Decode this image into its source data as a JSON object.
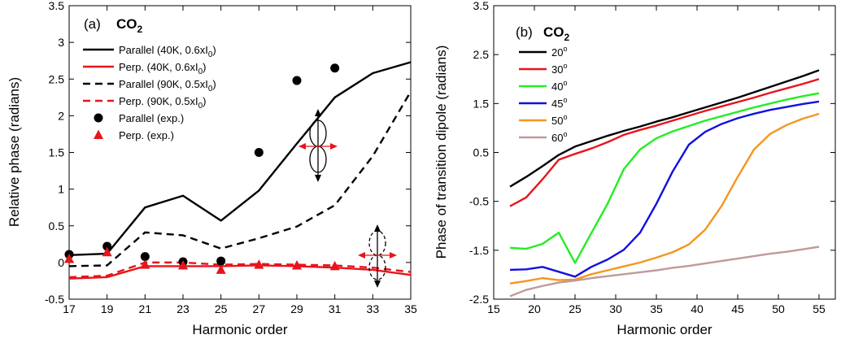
{
  "chart_data": [
    {
      "type": "line",
      "panel_label": "(a)",
      "molecule": "CO",
      "molecule_subscript": "2",
      "xlabel": "Harmonic order",
      "ylabel": "Relative phase (radians)",
      "xlim": [
        17,
        35
      ],
      "ylim": [
        -0.5,
        3.5
      ],
      "xticks": [
        17,
        19,
        21,
        23,
        25,
        27,
        29,
        31,
        33,
        35
      ],
      "xtick_labels": [
        "17",
        "19",
        "21",
        "23",
        "25",
        "27",
        "29",
        "31",
        "33",
        "35"
      ],
      "yticks": [
        -0.5,
        0,
        0.5,
        1,
        1.5,
        2,
        2.5,
        3,
        3.5
      ],
      "ytick_labels": [
        "-0.5",
        "0",
        "0.5",
        "1",
        "1.5",
        "2",
        "2.5",
        "3",
        "3.5"
      ],
      "legend_position": "top-left",
      "series": [
        {
          "name": "Parallel (40K, 0.6xI",
          "name_sub": "0",
          "name_end": ")",
          "style": "solid",
          "color": "#000000",
          "x": [
            17,
            19,
            21,
            23,
            25,
            27,
            29,
            31,
            33,
            35
          ],
          "y": [
            0.1,
            0.12,
            0.75,
            0.91,
            0.57,
            0.98,
            1.62,
            2.25,
            2.58,
            2.73
          ]
        },
        {
          "name": "Perp. (40K, 0.6xI",
          "name_sub": "0",
          "name_end": ")",
          "style": "solid",
          "color": "#e8141c",
          "x": [
            17,
            19,
            21,
            23,
            25,
            27,
            29,
            31,
            33,
            35
          ],
          "y": [
            -0.22,
            -0.2,
            -0.05,
            -0.05,
            -0.05,
            -0.04,
            -0.05,
            -0.07,
            -0.1,
            -0.17
          ]
        },
        {
          "name": "Parallel (90K, 0.5xI",
          "name_sub": "0",
          "name_end": ")",
          "style": "dashed",
          "color": "#000000",
          "x": [
            17,
            19,
            21,
            23,
            25,
            27,
            29,
            31,
            33,
            35
          ],
          "y": [
            -0.05,
            -0.04,
            0.41,
            0.37,
            0.19,
            0.33,
            0.49,
            0.78,
            1.45,
            2.33
          ]
        },
        {
          "name": "Perp. (90K, 0.5xI",
          "name_sub": "0",
          "name_end": ")",
          "style": "dashed",
          "color": "#e8141c",
          "x": [
            17,
            19,
            21,
            23,
            25,
            27,
            29,
            31,
            33,
            35
          ],
          "y": [
            -0.2,
            -0.18,
            0.0,
            0.0,
            -0.03,
            -0.02,
            -0.03,
            -0.04,
            -0.07,
            -0.13
          ]
        },
        {
          "name": "Parallel (exp.)",
          "style": "marker-circle",
          "color": "#000000",
          "x": [
            17,
            19,
            21,
            23,
            25,
            27,
            29,
            31
          ],
          "y": [
            0.11,
            0.22,
            0.08,
            0.01,
            0.02,
            1.5,
            2.48,
            2.65
          ]
        },
        {
          "name": "Perp. (exp.)",
          "style": "marker-triangle",
          "color": "#e8141c",
          "x": [
            17,
            19,
            21,
            23,
            25,
            27,
            29,
            31
          ],
          "y": [
            0.05,
            0.14,
            -0.03,
            -0.04,
            -0.1,
            -0.03,
            -0.04,
            -0.05
          ]
        }
      ]
    },
    {
      "type": "line",
      "panel_label": "(b)",
      "molecule": "CO",
      "molecule_subscript": "2",
      "xlabel": "Harmonic order",
      "ylabel": "Phase of transition dipole (radians)",
      "xlim": [
        15,
        57
      ],
      "ylim": [
        -2.5,
        3.5
      ],
      "xticks": [
        15,
        20,
        25,
        30,
        35,
        40,
        45,
        50,
        55
      ],
      "xtick_labels": [
        "15",
        "20",
        "25",
        "30",
        "35",
        "40",
        "45",
        "50",
        "55"
      ],
      "yticks": [
        -2.5,
        -1.5,
        -0.5,
        0.5,
        1.5,
        2.5,
        3.5
      ],
      "ytick_labels": [
        "-2.5",
        "-1.5",
        "-0.5",
        "0.5",
        "1.5",
        "2.5",
        "3.5"
      ],
      "legend_position": "top-left",
      "series": [
        {
          "name": "20",
          "degree": "o",
          "color": "#000000",
          "x": [
            17,
            19,
            21,
            23,
            25,
            27,
            29,
            31,
            33,
            35,
            37,
            39,
            41,
            43,
            45,
            47,
            49,
            51,
            53,
            55
          ],
          "y": [
            -0.2,
            0.0,
            0.22,
            0.45,
            0.62,
            0.73,
            0.84,
            0.94,
            1.03,
            1.13,
            1.22,
            1.32,
            1.42,
            1.52,
            1.62,
            1.73,
            1.84,
            1.95,
            2.06,
            2.18
          ]
        },
        {
          "name": "30",
          "degree": "o",
          "color": "#e8141c",
          "x": [
            17,
            19,
            21,
            23,
            25,
            27,
            29,
            31,
            33,
            35,
            37,
            39,
            41,
            43,
            45,
            47,
            49,
            51,
            53,
            55
          ],
          "y": [
            -0.6,
            -0.42,
            -0.05,
            0.35,
            0.47,
            0.58,
            0.71,
            0.86,
            0.96,
            1.05,
            1.15,
            1.25,
            1.35,
            1.44,
            1.53,
            1.62,
            1.72,
            1.81,
            1.9,
            2.0
          ]
        },
        {
          "name": "40",
          "degree": "o",
          "color": "#22ee22",
          "x": [
            17,
            19,
            21,
            23,
            25,
            27,
            29,
            31,
            33,
            35,
            37,
            39,
            41,
            43,
            45,
            47,
            49,
            51,
            53,
            55
          ],
          "y": [
            -1.45,
            -1.47,
            -1.37,
            -1.14,
            -1.76,
            -1.15,
            -0.55,
            0.16,
            0.56,
            0.79,
            0.93,
            1.04,
            1.15,
            1.24,
            1.33,
            1.42,
            1.5,
            1.58,
            1.65,
            1.71
          ]
        },
        {
          "name": "45",
          "degree": "o",
          "color": "#1111dd",
          "x": [
            17,
            19,
            21,
            23,
            25,
            27,
            29,
            31,
            33,
            35,
            37,
            39,
            41,
            43,
            45,
            47,
            49,
            51,
            53,
            55
          ],
          "y": [
            -1.9,
            -1.89,
            -1.84,
            -1.94,
            -2.04,
            -1.84,
            -1.69,
            -1.49,
            -1.14,
            -0.55,
            0.11,
            0.66,
            0.92,
            1.08,
            1.2,
            1.29,
            1.37,
            1.43,
            1.49,
            1.54
          ]
        },
        {
          "name": "50",
          "degree": "o",
          "color": "#f5961e",
          "x": [
            17,
            19,
            21,
            23,
            25,
            27,
            29,
            31,
            33,
            35,
            37,
            39,
            41,
            43,
            45,
            47,
            49,
            51,
            53,
            55
          ],
          "y": [
            -2.18,
            -2.13,
            -2.07,
            -2.11,
            -2.1,
            -1.99,
            -1.91,
            -1.83,
            -1.75,
            -1.65,
            -1.54,
            -1.38,
            -1.08,
            -0.6,
            0.0,
            0.56,
            0.88,
            1.06,
            1.19,
            1.29
          ]
        },
        {
          "name": "60",
          "degree": "o",
          "color": "#c09a98",
          "x": [
            17,
            19,
            21,
            23,
            25,
            27,
            29,
            31,
            33,
            35,
            37,
            39,
            41,
            43,
            45,
            47,
            49,
            51,
            53,
            55
          ],
          "y": [
            -2.44,
            -2.31,
            -2.23,
            -2.16,
            -2.12,
            -2.07,
            -2.03,
            -1.99,
            -1.95,
            -1.91,
            -1.86,
            -1.82,
            -1.77,
            -1.72,
            -1.67,
            -1.62,
            -1.57,
            -1.53,
            -1.48,
            -1.43
          ]
        }
      ]
    }
  ]
}
